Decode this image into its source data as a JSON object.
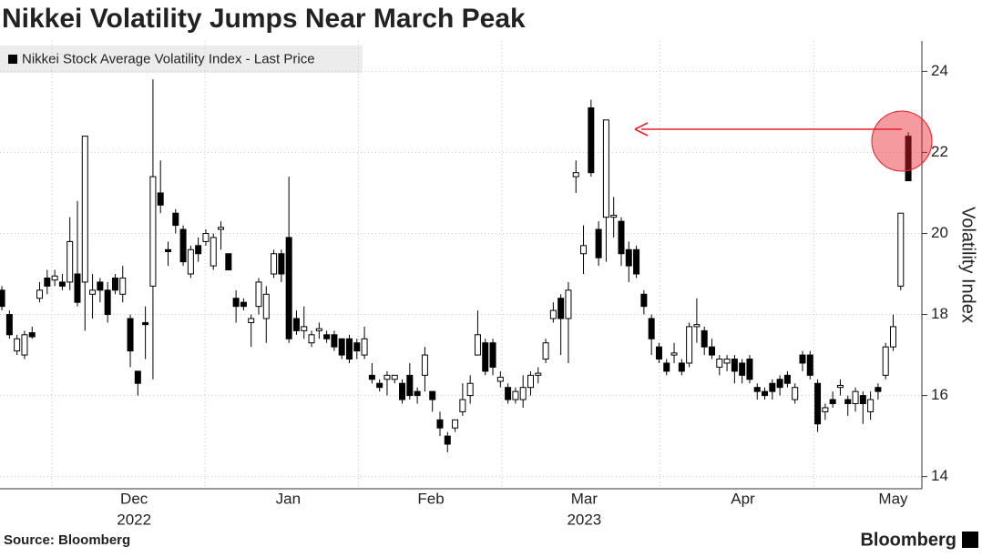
{
  "chart_data": {
    "type": "candlestick",
    "title": "Nikkei Volatility Jumps Near March Peak",
    "series_name": "Nikkei Stock Average Volatility Index - Last Price",
    "y_label": "Volatility Index",
    "source": "Source: Bloomberg",
    "brand": "Bloomberg",
    "up_color": "#ffffff",
    "down_color": "#000000",
    "annotation_color": "#e8202a",
    "ylim": [
      13.7,
      24.75
    ],
    "yticks": [
      14,
      16,
      18,
      20,
      22,
      24
    ],
    "grid": true,
    "xlim": [
      -0.25,
      121.8
    ],
    "xticks": [
      {
        "value": 17.5,
        "label": "Dec"
      },
      {
        "value": 37.9,
        "label": "Jan"
      },
      {
        "value": 56.8,
        "label": "Feb"
      },
      {
        "value": 77.1,
        "label": "Mar"
      },
      {
        "value": 98.1,
        "label": "Apr"
      },
      {
        "value": 118,
        "label": "May"
      }
    ],
    "xgrid": [
      6.6,
      26.9,
      47.2,
      66.2,
      87.1,
      107.5
    ],
    "year_labels": [
      {
        "value": 17.5,
        "label": "2022"
      },
      {
        "value": 77.1,
        "label": "2023"
      }
    ],
    "open": [
      18.6,
      18.0,
      17.1,
      17.0,
      17.55,
      18.4,
      18.9,
      18.85,
      18.8,
      18.8,
      19.0,
      18.8,
      18.5,
      18.8,
      18.6,
      18.9,
      18.5,
      17.9,
      16.6,
      17.8,
      18.7,
      21.0,
      19.6,
      20.5,
      20.1,
      19.0,
      19.7,
      19.8,
      19.2,
      20.1,
      19.5,
      18.4,
      18.3,
      17.8,
      18.2,
      17.9,
      19.0,
      19.5,
      19.9,
      17.9,
      17.6,
      17.3,
      17.6,
      17.5,
      17.5,
      17.4,
      17.4,
      17.3,
      17.0,
      16.5,
      16.3,
      16.4,
      16.4,
      16.3,
      16.5,
      16.1,
      16.5,
      16.1,
      15.4,
      15.0,
      15.2,
      15.6,
      16.0,
      17.0,
      17.3,
      17.3,
      16.35,
      16.2,
      15.9,
      15.9,
      16.2,
      16.5,
      16.9,
      17.9,
      18.4,
      17.9,
      21.4,
      19.5,
      23.1,
      20.1,
      20.4,
      20.4,
      20.3,
      19.6,
      19.6,
      18.5,
      17.9,
      17.2,
      16.8,
      17.0,
      16.8,
      16.8,
      17.7,
      17.6,
      17.2,
      16.7,
      16.8,
      16.9,
      16.8,
      16.9,
      16.2,
      16.1,
      16.3,
      16.4,
      16.5,
      15.9,
      17.0,
      17.0,
      16.3,
      15.6,
      15.9,
      16.2,
      15.9,
      15.8,
      16.0,
      15.6,
      16.2,
      16.5,
      17.2,
      18.7,
      22.4
    ],
    "high": [
      18.7,
      18.1,
      17.5,
      17.6,
      17.7,
      18.8,
      19.1,
      19.1,
      19.0,
      20.4,
      20.8,
      22.4,
      19.0,
      18.9,
      18.8,
      19.0,
      19.2,
      18.0,
      16.6,
      18.2,
      23.8,
      21.8,
      19.8,
      20.6,
      20.2,
      19.7,
      19.9,
      20.1,
      20.0,
      20.3,
      19.5,
      18.6,
      18.4,
      18.0,
      18.9,
      18.7,
      19.6,
      19.6,
      21.4,
      18.1,
      18.2,
      17.6,
      17.8,
      17.6,
      17.6,
      17.4,
      17.5,
      17.4,
      17.7,
      16.8,
      16.4,
      16.6,
      16.5,
      16.4,
      16.8,
      16.2,
      17.2,
      16.1,
      15.6,
      15.1,
      15.4,
      16.3,
      16.5,
      18.1,
      17.4,
      17.4,
      16.6,
      16.3,
      16.2,
      16.5,
      16.6,
      16.7,
      17.4,
      18.3,
      18.5,
      18.8,
      21.8,
      20.2,
      23.3,
      20.3,
      22.8,
      20.9,
      20.4,
      19.8,
      19.7,
      18.6,
      18.0,
      17.3,
      16.9,
      17.3,
      16.9,
      17.8,
      18.4,
      17.7,
      17.4,
      17.0,
      17.0,
      17.0,
      16.9,
      17.0,
      16.3,
      16.2,
      16.4,
      16.5,
      16.6,
      16.3,
      17.1,
      17.1,
      16.4,
      15.8,
      16.1,
      16.4,
      16.0,
      16.2,
      16.1,
      16.1,
      16.3,
      17.3,
      18.0,
      20.5,
      22.5
    ],
    "low": [
      18.1,
      17.4,
      17.0,
      16.9,
      17.4,
      18.3,
      18.5,
      18.7,
      18.6,
      18.6,
      18.2,
      17.6,
      17.9,
      18.3,
      17.8,
      18.5,
      18.3,
      16.7,
      16.0,
      16.9,
      16.4,
      20.5,
      19.2,
      20.0,
      19.2,
      18.9,
      19.3,
      19.7,
      19.1,
      19.6,
      19.1,
      17.8,
      18.1,
      17.2,
      18.0,
      17.3,
      18.9,
      18.8,
      17.3,
      17.5,
      17.4,
      17.2,
      17.4,
      17.3,
      17.1,
      16.9,
      16.8,
      16.9,
      16.9,
      16.3,
      16.1,
      16.0,
      16.3,
      15.8,
      15.9,
      15.8,
      16.1,
      15.6,
      15.0,
      14.6,
      15.1,
      15.5,
      15.8,
      17.0,
      16.5,
      16.5,
      16.2,
      15.8,
      15.8,
      15.7,
      16.0,
      16.3,
      16.8,
      17.8,
      17.0,
      16.8,
      21.0,
      19.0,
      21.4,
      19.2,
      19.3,
      19.9,
      19.2,
      18.8,
      18.9,
      18.0,
      17.0,
      16.8,
      16.5,
      16.8,
      16.5,
      16.7,
      17.3,
      17.0,
      16.9,
      16.5,
      16.6,
      16.3,
      16.3,
      16.3,
      15.9,
      15.9,
      15.9,
      16.0,
      16.2,
      15.8,
      16.6,
      16.4,
      15.1,
      15.4,
      15.7,
      16.0,
      15.5,
      15.6,
      15.3,
      15.4,
      15.9,
      16.4,
      17.1,
      18.6,
      21.3
    ],
    "close": [
      18.2,
      17.5,
      17.4,
      17.5,
      17.45,
      18.6,
      18.7,
      18.95,
      18.7,
      19.8,
      18.3,
      22.4,
      18.6,
      18.6,
      18.0,
      18.6,
      18.9,
      17.1,
      16.3,
      17.75,
      21.4,
      20.7,
      19.55,
      20.2,
      19.3,
      19.6,
      19.5,
      20.0,
      19.9,
      20.15,
      19.1,
      18.2,
      18.2,
      17.9,
      18.8,
      18.5,
      19.5,
      19.0,
      17.4,
      17.6,
      17.7,
      17.5,
      17.65,
      17.4,
      17.2,
      17.0,
      16.9,
      17.1,
      17.4,
      16.4,
      16.2,
      16.5,
      16.5,
      15.9,
      16.0,
      16.0,
      17.0,
      15.9,
      15.2,
      14.8,
      15.4,
      15.9,
      16.3,
      17.5,
      16.6,
      16.7,
      16.45,
      15.9,
      16.1,
      16.2,
      16.5,
      16.55,
      17.3,
      18.1,
      17.9,
      18.6,
      21.5,
      19.7,
      21.5,
      19.4,
      22.8,
      20.45,
      19.5,
      19.2,
      19.0,
      18.2,
      17.4,
      16.9,
      16.6,
      17.05,
      16.6,
      17.7,
      17.75,
      17.2,
      17.0,
      16.9,
      16.9,
      16.6,
      16.5,
      16.4,
      16.1,
      16.0,
      16.1,
      16.2,
      16.3,
      16.2,
      16.8,
      16.5,
      15.3,
      15.7,
      15.8,
      16.25,
      15.8,
      16.1,
      15.8,
      15.9,
      16.1,
      17.2,
      17.7,
      20.5,
      21.3
    ]
  }
}
